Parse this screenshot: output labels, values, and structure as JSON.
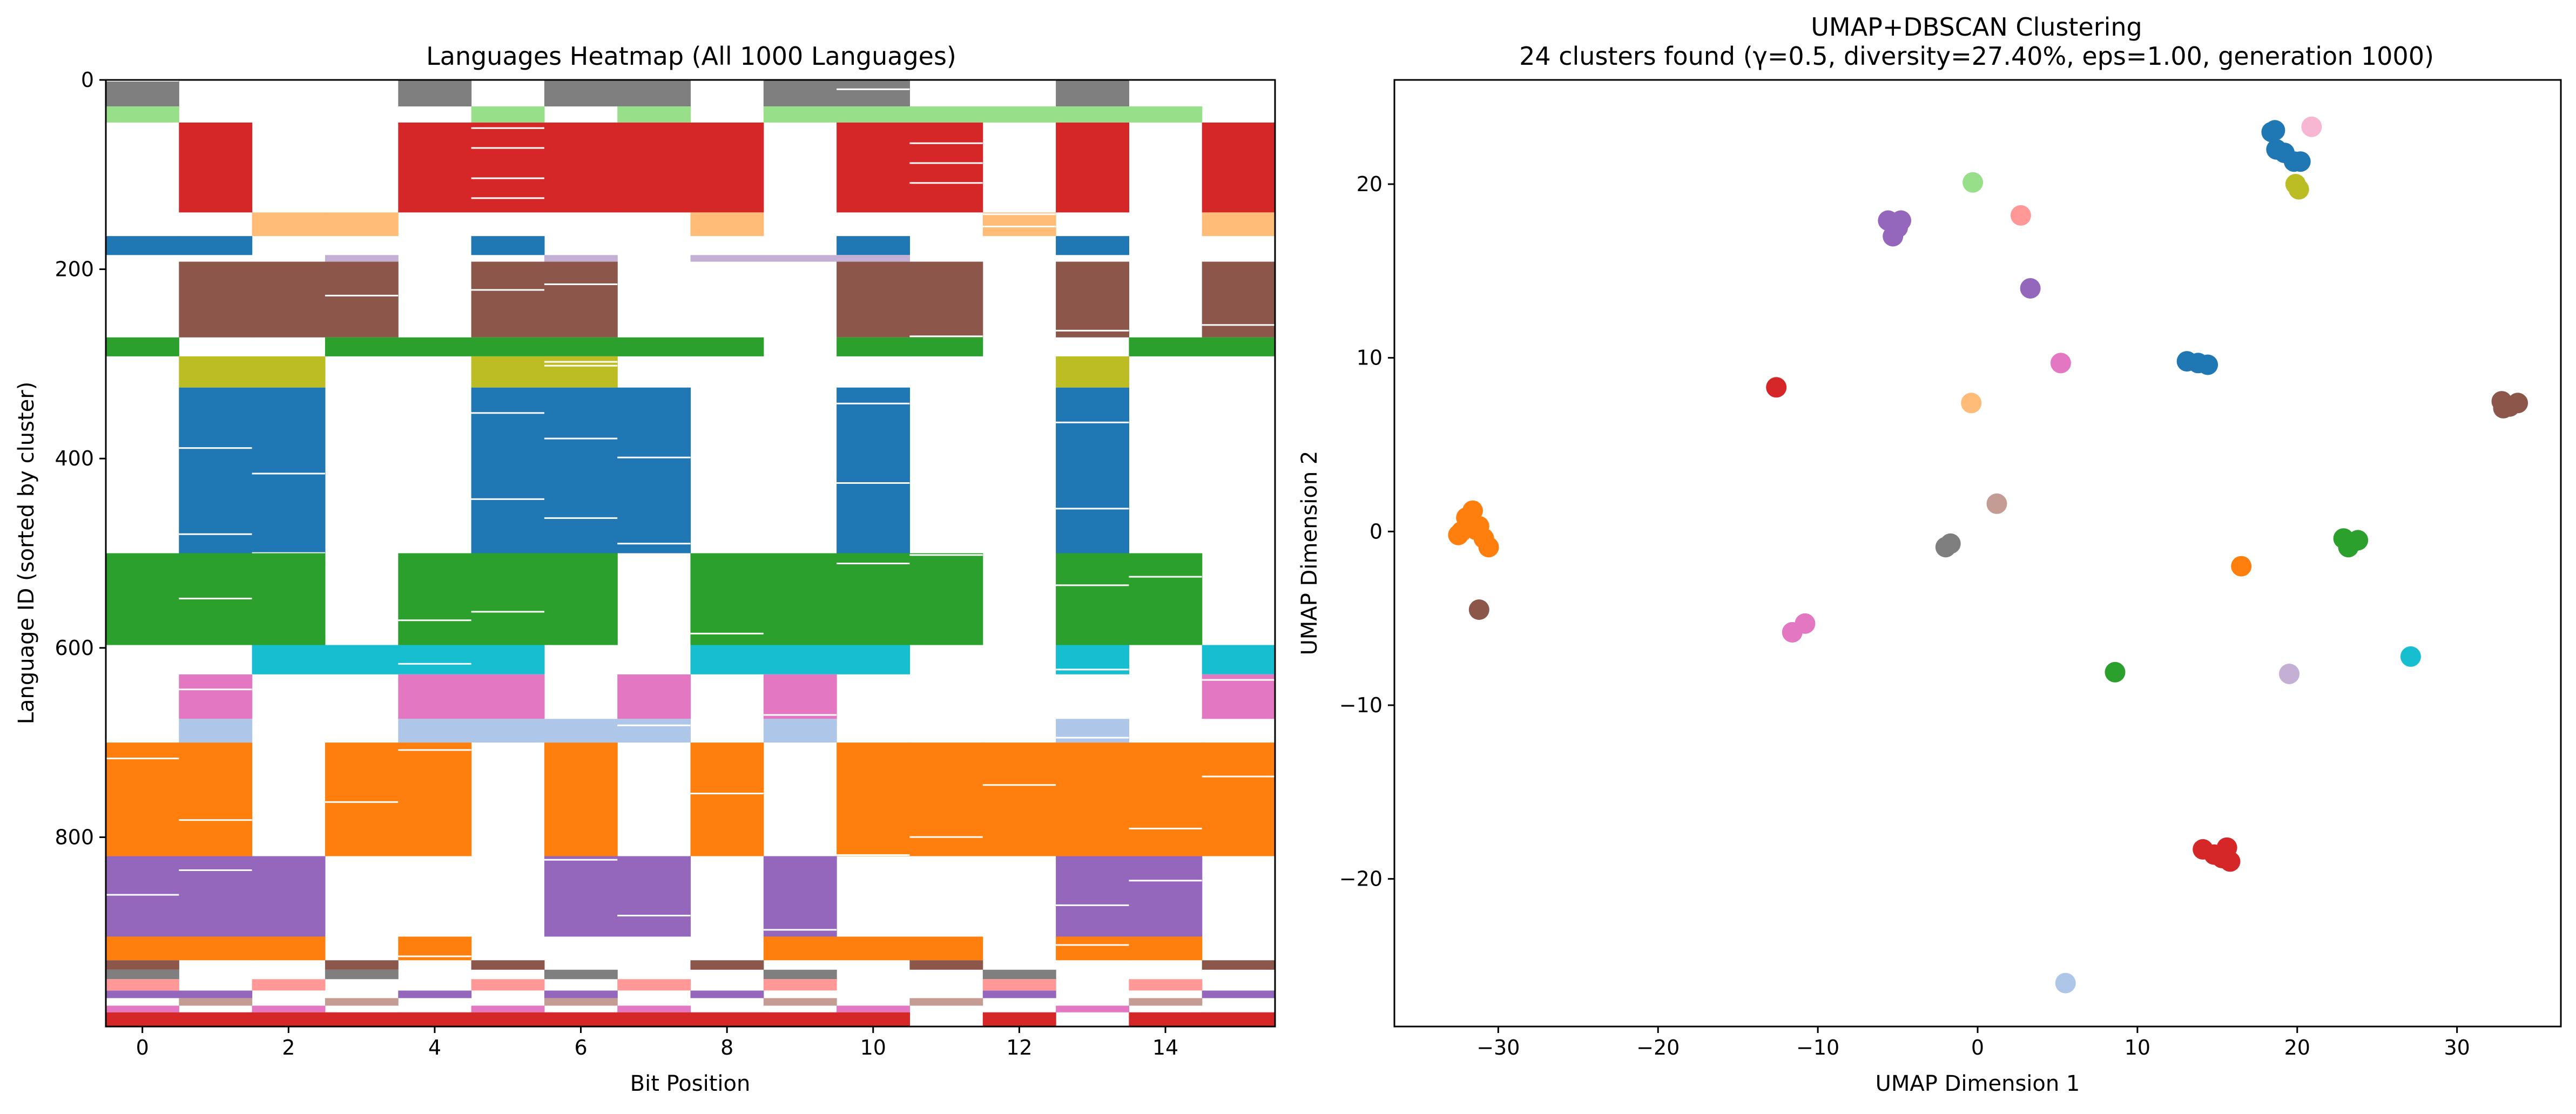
{
  "chart_data": [
    {
      "type": "heatmap",
      "title": "Languages Heatmap (All 1000 Languages)",
      "xlabel": "Bit Position",
      "ylabel": "Language ID (sorted by cluster)",
      "xlim": [
        -0.5,
        15.5
      ],
      "ylim": [
        1000,
        0
      ],
      "y_inverted": true,
      "x_ticks": [
        0,
        2,
        4,
        6,
        8,
        10,
        12,
        14
      ],
      "x_tick_labels": [
        "0",
        "2",
        "4",
        "6",
        "8",
        "10",
        "12",
        "14"
      ],
      "y_ticks": [
        0,
        200,
        400,
        600,
        800
      ],
      "y_tick_labels": [
        "0",
        "200",
        "400",
        "600",
        "800"
      ],
      "grid": false,
      "note_cells": "Cell colored by cluster color where bit = 1, white where bit = 0",
      "blocks": [
        {
          "cluster": "gray",
          "color": "#7f7f7f",
          "rows": [
            0,
            28
          ],
          "bits": [
            0,
            4,
            6,
            7,
            9,
            10,
            13
          ]
        },
        {
          "cluster": "light-green",
          "color": "#98df8a",
          "rows": [
            28,
            45
          ],
          "bits": [
            0,
            5,
            7,
            9,
            10,
            11,
            12,
            13,
            14
          ]
        },
        {
          "cluster": "red",
          "color": "#d62728",
          "rows": [
            45,
            140
          ],
          "bits": [
            1,
            4,
            5,
            6,
            7,
            8,
            10,
            11,
            13,
            15
          ]
        },
        {
          "cluster": "light-orange",
          "color": "#ffbb78",
          "rows": [
            140,
            165
          ],
          "bits": [
            2,
            3,
            8,
            12,
            15
          ]
        },
        {
          "cluster": "blue",
          "color": "#1f77b4",
          "rows": [
            165,
            185
          ],
          "bits": [
            0,
            1,
            5,
            10,
            13
          ]
        },
        {
          "cluster": "lavender",
          "color": "#c5b0d5",
          "rows": [
            185,
            192
          ],
          "bits": [
            3,
            6,
            8,
            9,
            10
          ]
        },
        {
          "cluster": "brown",
          "color": "#8c564b",
          "rows": [
            192,
            272
          ],
          "bits": [
            1,
            2,
            3,
            5,
            6,
            10,
            11,
            13,
            15
          ]
        },
        {
          "cluster": "green",
          "color": "#2ca02c",
          "rows": [
            272,
            292
          ],
          "bits": [
            0,
            3,
            4,
            5,
            6,
            7,
            8,
            10,
            11,
            14,
            15
          ]
        },
        {
          "cluster": "olive",
          "color": "#bcbd22",
          "rows": [
            292,
            325
          ],
          "bits": [
            1,
            2,
            5,
            6,
            13
          ]
        },
        {
          "cluster": "blue",
          "color": "#1f77b4",
          "rows": [
            325,
            500
          ],
          "bits": [
            1,
            2,
            5,
            6,
            7,
            10,
            13
          ]
        },
        {
          "cluster": "green",
          "color": "#2ca02c",
          "rows": [
            500,
            597
          ],
          "bits": [
            0,
            1,
            2,
            4,
            5,
            6,
            8,
            9,
            10,
            11,
            13,
            14
          ]
        },
        {
          "cluster": "cyan",
          "color": "#17becf",
          "rows": [
            597,
            628
          ],
          "bits": [
            2,
            3,
            4,
            5,
            8,
            9,
            10,
            13,
            15
          ]
        },
        {
          "cluster": "pink",
          "color": "#e377c2",
          "rows": [
            628,
            675
          ],
          "bits": [
            1,
            4,
            5,
            7,
            9,
            15
          ]
        },
        {
          "cluster": "light-blue",
          "color": "#aec7e8",
          "rows": [
            675,
            700
          ],
          "bits": [
            1,
            4,
            5,
            6,
            7,
            9,
            13
          ]
        },
        {
          "cluster": "orange",
          "color": "#ff7f0e",
          "rows": [
            700,
            820
          ],
          "bits": [
            0,
            1,
            3,
            4,
            6,
            8,
            10,
            11,
            12,
            13,
            14,
            15
          ]
        },
        {
          "cluster": "purple",
          "color": "#9467bd",
          "rows": [
            820,
            905
          ],
          "bits": [
            0,
            1,
            2,
            6,
            7,
            9,
            13,
            14
          ]
        },
        {
          "cluster": "orange",
          "color": "#ff7f0e",
          "rows": [
            905,
            930
          ],
          "bits": [
            0,
            1,
            2,
            4,
            9,
            10,
            11,
            13,
            14
          ]
        },
        {
          "cluster": "brown",
          "color": "#8c564b",
          "rows": [
            930,
            940
          ],
          "bits": [
            0,
            3,
            5,
            8,
            11,
            15
          ]
        },
        {
          "cluster": "gray",
          "color": "#7f7f7f",
          "rows": [
            940,
            950
          ],
          "bits": [
            0,
            3,
            6,
            9,
            12
          ]
        },
        {
          "cluster": "salmon",
          "color": "#ff9896",
          "rows": [
            950,
            962
          ],
          "bits": [
            0,
            2,
            5,
            7,
            9,
            12,
            14
          ]
        },
        {
          "cluster": "purple",
          "color": "#9467bd",
          "rows": [
            962,
            970
          ],
          "bits": [
            0,
            1,
            4,
            6,
            8,
            12,
            15
          ]
        },
        {
          "cluster": "tan",
          "color": "#c49c94",
          "rows": [
            970,
            978
          ],
          "bits": [
            1,
            3,
            6,
            9,
            11,
            14
          ]
        },
        {
          "cluster": "pink",
          "color": "#e377c2",
          "rows": [
            978,
            985
          ],
          "bits": [
            0,
            2,
            5,
            7,
            10,
            13
          ]
        },
        {
          "cluster": "red",
          "color": "#d62728",
          "rows": [
            985,
            1000
          ],
          "bits": [
            0,
            1,
            2,
            3,
            4,
            5,
            6,
            7,
            8,
            9,
            10,
            12,
            14,
            15
          ]
        }
      ]
    },
    {
      "type": "scatter",
      "title": "UMAP+DBSCAN Clustering",
      "subtitle": "24 clusters found (γ=0.5, diversity=27.40%, eps=1.00, generation 1000)",
      "xlabel": "UMAP Dimension 1",
      "ylabel": "UMAP Dimension 2",
      "xlim": [
        -36.5,
        36.5
      ],
      "ylim": [
        -28.5,
        26
      ],
      "x_ticks": [
        -30,
        -20,
        -10,
        0,
        10,
        20,
        30
      ],
      "x_tick_labels": [
        "−30",
        "−20",
        "−10",
        "0",
        "10",
        "20",
        "30"
      ],
      "y_ticks": [
        -20,
        -10,
        0,
        10,
        20
      ],
      "y_tick_labels": [
        "−20",
        "−10",
        "0",
        "10",
        "20"
      ],
      "grid": false,
      "points": [
        {
          "x": -32.3,
          "y": 0.0,
          "color": "#ff7f0e"
        },
        {
          "x": -32.0,
          "y": 0.8,
          "color": "#ff7f0e"
        },
        {
          "x": -31.6,
          "y": 1.2,
          "color": "#ff7f0e"
        },
        {
          "x": -31.2,
          "y": 0.3,
          "color": "#ff7f0e"
        },
        {
          "x": -30.9,
          "y": -0.4,
          "color": "#ff7f0e"
        },
        {
          "x": -30.6,
          "y": -0.9,
          "color": "#ff7f0e"
        },
        {
          "x": -32.5,
          "y": -0.2,
          "color": "#ff7f0e"
        },
        {
          "x": -31.4,
          "y": 0.1,
          "color": "#ff7f0e"
        },
        {
          "x": -31.2,
          "y": -4.5,
          "color": "#8c564b"
        },
        {
          "x": -12.6,
          "y": 8.3,
          "color": "#d62728"
        },
        {
          "x": -11.6,
          "y": -5.8,
          "color": "#e377c2"
        },
        {
          "x": -10.8,
          "y": -5.3,
          "color": "#e377c2"
        },
        {
          "x": -5.6,
          "y": 17.9,
          "color": "#9467bd"
        },
        {
          "x": -5.0,
          "y": 17.5,
          "color": "#9467bd"
        },
        {
          "x": -5.3,
          "y": 17.0,
          "color": "#9467bd"
        },
        {
          "x": -4.8,
          "y": 17.9,
          "color": "#9467bd"
        },
        {
          "x": -0.3,
          "y": 20.1,
          "color": "#98df8a"
        },
        {
          "x": -0.4,
          "y": 7.4,
          "color": "#ffbb78"
        },
        {
          "x": -2.0,
          "y": -0.9,
          "color": "#7f7f7f"
        },
        {
          "x": -1.7,
          "y": -0.7,
          "color": "#7f7f7f"
        },
        {
          "x": 1.2,
          "y": 1.6,
          "color": "#c49c94"
        },
        {
          "x": 2.7,
          "y": 18.2,
          "color": "#ff9896"
        },
        {
          "x": 3.3,
          "y": 14.0,
          "color": "#9467bd"
        },
        {
          "x": 5.2,
          "y": 9.7,
          "color": "#e377c2"
        },
        {
          "x": 5.5,
          "y": -26.0,
          "color": "#aec7e8"
        },
        {
          "x": 8.6,
          "y": -8.1,
          "color": "#2ca02c"
        },
        {
          "x": 13.1,
          "y": 9.8,
          "color": "#1f77b4"
        },
        {
          "x": 13.8,
          "y": 9.7,
          "color": "#1f77b4"
        },
        {
          "x": 14.4,
          "y": 9.6,
          "color": "#1f77b4"
        },
        {
          "x": 14.1,
          "y": -18.3,
          "color": "#d62728"
        },
        {
          "x": 14.8,
          "y": -18.6,
          "color": "#d62728"
        },
        {
          "x": 15.3,
          "y": -18.8,
          "color": "#d62728"
        },
        {
          "x": 15.8,
          "y": -19.0,
          "color": "#d62728"
        },
        {
          "x": 15.6,
          "y": -18.2,
          "color": "#d62728"
        },
        {
          "x": 16.5,
          "y": -2.0,
          "color": "#ff7f0e"
        },
        {
          "x": 18.4,
          "y": 23.0,
          "color": "#1f77b4"
        },
        {
          "x": 18.7,
          "y": 22.0,
          "color": "#1f77b4"
        },
        {
          "x": 19.2,
          "y": 21.8,
          "color": "#1f77b4"
        },
        {
          "x": 19.8,
          "y": 21.3,
          "color": "#1f77b4"
        },
        {
          "x": 20.2,
          "y": 21.3,
          "color": "#1f77b4"
        },
        {
          "x": 18.6,
          "y": 23.1,
          "color": "#1f77b4"
        },
        {
          "x": 19.9,
          "y": 20.0,
          "color": "#bcbd22"
        },
        {
          "x": 20.1,
          "y": 19.7,
          "color": "#bcbd22"
        },
        {
          "x": 19.5,
          "y": -8.2,
          "color": "#c5b0d5"
        },
        {
          "x": 20.9,
          "y": 23.3,
          "color": "#f7b6d2"
        },
        {
          "x": 22.9,
          "y": -0.4,
          "color": "#2ca02c"
        },
        {
          "x": 23.5,
          "y": -0.6,
          "color": "#2ca02c"
        },
        {
          "x": 23.2,
          "y": -0.9,
          "color": "#2ca02c"
        },
        {
          "x": 23.8,
          "y": -0.5,
          "color": "#2ca02c"
        },
        {
          "x": 27.1,
          "y": -7.2,
          "color": "#17becf"
        },
        {
          "x": 32.8,
          "y": 7.5,
          "color": "#8c564b"
        },
        {
          "x": 33.3,
          "y": 7.2,
          "color": "#8c564b"
        },
        {
          "x": 33.8,
          "y": 7.4,
          "color": "#8c564b"
        },
        {
          "x": 32.9,
          "y": 7.1,
          "color": "#8c564b"
        }
      ]
    }
  ]
}
